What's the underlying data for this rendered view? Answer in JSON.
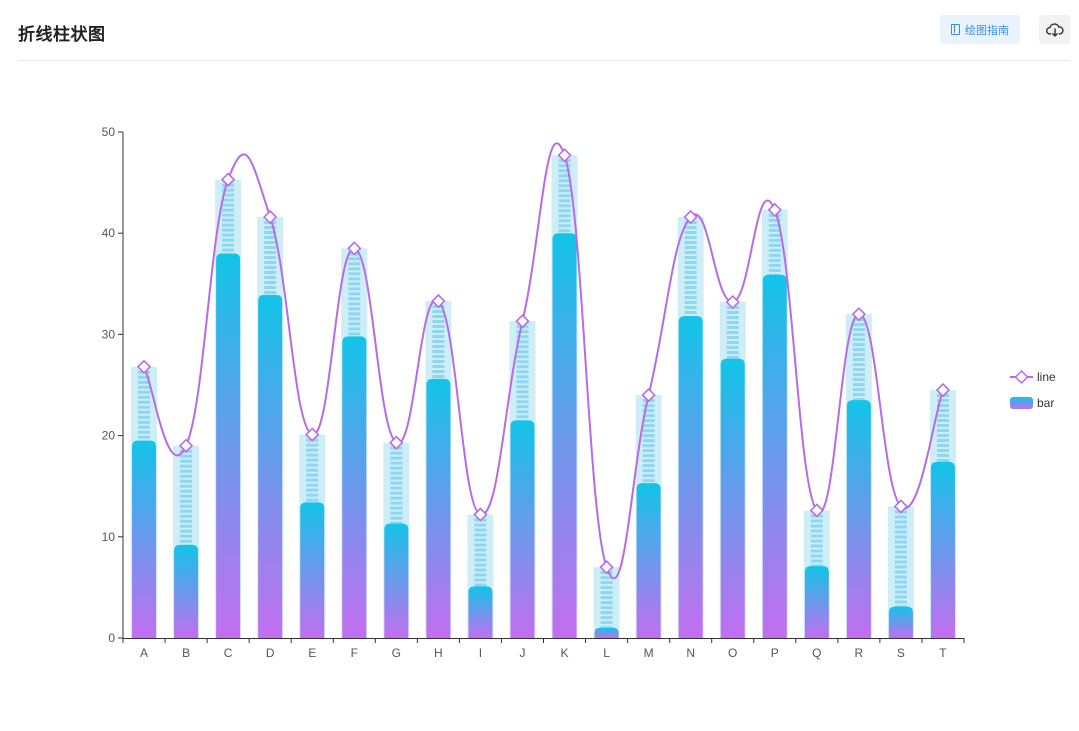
{
  "header": {
    "title": "折线柱状图",
    "guide_label": "绘图指南"
  },
  "icons": {
    "guide": "book-icon",
    "download": "cloud-download-icon"
  },
  "colors": {
    "bar_top": "#12c4e8",
    "bar_bottom": "#c36ef0",
    "track": "#cdeef6",
    "dash": "#8fd6f3",
    "line": "#b86be6"
  },
  "chart_data": {
    "type": "bar",
    "categories": [
      "A",
      "B",
      "C",
      "D",
      "E",
      "F",
      "G",
      "H",
      "I",
      "J",
      "K",
      "L",
      "M",
      "N",
      "O",
      "P",
      "Q",
      "R",
      "S",
      "T"
    ],
    "series": [
      {
        "name": "line",
        "type": "line",
        "smooth": true,
        "values": [
          26.8,
          19.0,
          45.3,
          41.6,
          20.1,
          38.5,
          19.3,
          33.3,
          12.2,
          31.3,
          47.7,
          7.0,
          24.0,
          41.6,
          33.2,
          42.3,
          12.6,
          32.0,
          13.0,
          24.5
        ]
      },
      {
        "name": "bar",
        "type": "bar",
        "values": [
          19.5,
          9.2,
          38.0,
          33.9,
          13.4,
          29.8,
          11.3,
          25.6,
          5.1,
          21.5,
          40.0,
          1.0,
          15.3,
          31.8,
          27.6,
          35.9,
          7.1,
          23.5,
          3.1,
          17.4
        ]
      }
    ],
    "yticks": [
      0,
      10,
      20,
      30,
      40,
      50
    ],
    "ylim": [
      0,
      50
    ],
    "grid": false,
    "legend": {
      "position": "right",
      "entries": [
        "line",
        "bar"
      ]
    }
  }
}
